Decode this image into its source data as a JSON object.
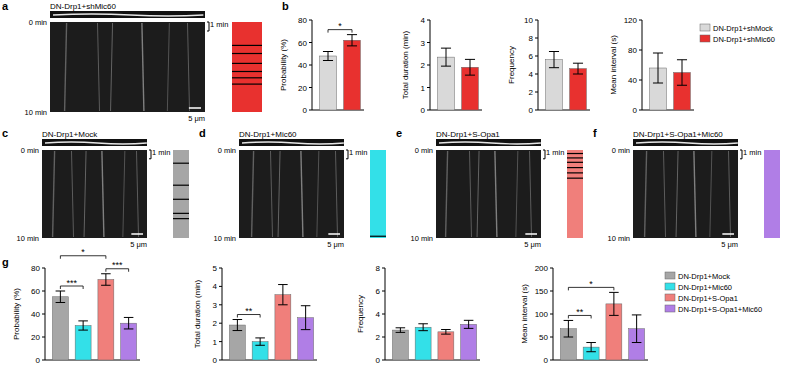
{
  "panel_labels": [
    "a",
    "b",
    "c",
    "d",
    "e",
    "f",
    "g"
  ],
  "kymographs": [
    {
      "title": "DN-Drp1+shMic60",
      "color": "#e8312f",
      "time_range": [
        0,
        10
      ],
      "time_ticks": [
        {
          "value": 0,
          "label": "0 min"
        },
        {
          "value": 10,
          "label": "10 min"
        }
      ],
      "time_scale": {
        "value": 1,
        "label": "1 min"
      },
      "space_range": [
        0,
        64
      ],
      "space_scale": {
        "value": 5,
        "label": "5 μm"
      },
      "events": [
        2.6,
        3.5,
        4.6,
        5.5,
        6.2,
        6.9
      ]
    },
    {
      "title": "DN-Drp1+Mock",
      "color": "#a6a6a6",
      "time_range": [
        0,
        10
      ],
      "time_ticks": [
        {
          "value": 0,
          "label": "0 min"
        },
        {
          "value": 10,
          "label": "10 min"
        }
      ],
      "time_scale": {
        "value": 1,
        "label": "1 min"
      },
      "space_range": [
        0,
        45
      ],
      "space_scale": {
        "value": 5,
        "label": "5 μm"
      },
      "events": [
        1.5,
        4.0,
        5.6,
        7.2,
        7.8
      ]
    },
    {
      "title": "DN-Drp1+Mic60",
      "color": "#33e0e8",
      "time_range": [
        0,
        10
      ],
      "time_ticks": [
        {
          "value": 0,
          "label": "0 min"
        },
        {
          "value": 10,
          "label": "10 min"
        }
      ],
      "time_scale": {
        "value": 1,
        "label": "1 min"
      },
      "space_range": [
        0,
        45
      ],
      "space_scale": {
        "value": 5,
        "label": "5 μm"
      },
      "events": [
        9.8
      ]
    },
    {
      "title": "DN-Drp1+S-Opa1",
      "color": "#f07f7b",
      "time_range": [
        0,
        10
      ],
      "time_ticks": [
        {
          "value": 0,
          "label": "0 min"
        },
        {
          "value": 10,
          "label": "10 min"
        }
      ],
      "time_scale": {
        "value": 1,
        "label": "1 min"
      },
      "space_range": [
        0,
        45
      ],
      "space_scale": {
        "value": 5,
        "label": "5 μm"
      },
      "events": [
        0.4,
        0.9,
        1.4,
        2.0,
        2.6,
        3.2
      ]
    },
    {
      "title": "DN-Drp1+S-Opa1+Mic60",
      "color": "#b07ee6",
      "time_range": [
        0,
        10
      ],
      "time_ticks": [
        {
          "value": 0,
          "label": "0 min"
        },
        {
          "value": 10,
          "label": "10 min"
        }
      ],
      "time_scale": {
        "value": 1,
        "label": "1 min"
      },
      "space_range": [
        0,
        45
      ],
      "space_scale": {
        "value": 5,
        "label": "5 μm"
      },
      "events": []
    }
  ],
  "chart_data": [
    {
      "type": "bar",
      "y_label": "Probability (%)",
      "categories": [
        null,
        null
      ],
      "values": [
        48,
        62
      ],
      "errors": [
        4,
        5
      ],
      "colors": [
        "#d9d9d9",
        "#e8312f"
      ],
      "ylim": [
        0,
        80
      ],
      "yticks": [
        0,
        20,
        40,
        60,
        80
      ],
      "tick_labels": "y",
      "annotations": [
        {
          "from": 0,
          "to": 1,
          "text": "*"
        }
      ]
    },
    {
      "type": "bar",
      "y_label": "Total duration (min)",
      "categories": [
        null,
        null
      ],
      "values": [
        2.35,
        1.9
      ],
      "errors": [
        0.4,
        0.35
      ],
      "colors": [
        "#d9d9d9",
        "#e8312f"
      ],
      "ylim": [
        0,
        4
      ],
      "yticks": [
        0,
        1,
        2,
        3,
        4
      ],
      "tick_labels": "y"
    },
    {
      "type": "bar",
      "y_label": "Frequency",
      "categories": [
        null,
        null
      ],
      "values": [
        5.6,
        4.6
      ],
      "errors": [
        0.9,
        0.6
      ],
      "colors": [
        "#d9d9d9",
        "#e8312f"
      ],
      "ylim": [
        0,
        10
      ],
      "yticks": [
        0,
        2,
        4,
        6,
        8,
        10
      ],
      "tick_labels": "y"
    },
    {
      "type": "bar",
      "y_label": "Mean interval (s)",
      "categories": [
        null,
        null
      ],
      "values": [
        56,
        50
      ],
      "errors": [
        20,
        17
      ],
      "colors": [
        "#d9d9d9",
        "#e8312f"
      ],
      "ylim": [
        0,
        120
      ],
      "yticks": [
        0,
        40,
        80,
        120
      ],
      "tick_labels": "y"
    },
    {
      "type": "bar",
      "y_label": "Probability (%)",
      "categories": [
        null,
        null,
        null,
        null
      ],
      "values": [
        55,
        30,
        70,
        32
      ],
      "errors": [
        5,
        4,
        5,
        5
      ],
      "colors": [
        "#a6a6a6",
        "#33e0e8",
        "#f07f7b",
        "#b07ee6"
      ],
      "ylim": [
        0,
        80
      ],
      "yticks": [
        0,
        20,
        40,
        60,
        80
      ],
      "tick_labels": "y",
      "annotations": [
        {
          "from": 0,
          "to": 1,
          "text": "***"
        },
        {
          "from": 0,
          "to": 2,
          "text": "*"
        },
        {
          "from": 2,
          "to": 3,
          "text": "***"
        }
      ]
    },
    {
      "type": "bar",
      "y_label": "Total duration (min)",
      "categories": [
        null,
        null,
        null,
        null
      ],
      "values": [
        1.9,
        1.0,
        3.55,
        2.3
      ],
      "errors": [
        0.3,
        0.2,
        0.55,
        0.65
      ],
      "colors": [
        "#a6a6a6",
        "#33e0e8",
        "#f07f7b",
        "#b07ee6"
      ],
      "ylim": [
        0,
        5
      ],
      "yticks": [
        0,
        1,
        2,
        3,
        4,
        5
      ],
      "tick_labels": "y",
      "annotations": [
        {
          "from": 0,
          "to": 1,
          "text": "**"
        }
      ]
    },
    {
      "type": "bar",
      "y_label": "Frequency",
      "categories": [
        null,
        null,
        null,
        null
      ],
      "values": [
        2.6,
        2.85,
        2.45,
        3.1
      ],
      "errors": [
        0.2,
        0.3,
        0.2,
        0.35
      ],
      "colors": [
        "#a6a6a6",
        "#33e0e8",
        "#f07f7b",
        "#b07ee6"
      ],
      "ylim": [
        0,
        8
      ],
      "yticks": [
        0,
        2,
        4,
        6,
        8
      ],
      "tick_labels": "y"
    },
    {
      "type": "bar",
      "y_label": "Mean interval (s)",
      "categories": [
        null,
        null,
        null,
        null
      ],
      "values": [
        68,
        28,
        122,
        68
      ],
      "errors": [
        18,
        10,
        25,
        30
      ],
      "colors": [
        "#a6a6a6",
        "#33e0e8",
        "#f07f7b",
        "#b07ee6"
      ],
      "ylim": [
        0,
        200
      ],
      "yticks": [
        0,
        50,
        100,
        150,
        200
      ],
      "tick_labels": "y",
      "annotations": [
        {
          "from": 0,
          "to": 1,
          "text": "**"
        },
        {
          "from": 0,
          "to": 2,
          "text": "*"
        }
      ]
    }
  ],
  "legends": [
    {
      "entries": [
        {
          "name": "DN-Drp1+shMock",
          "color": "#d9d9d9"
        },
        {
          "name": "DN-Drp1+shMic60",
          "color": "#e8312f"
        }
      ]
    },
    {
      "entries": [
        {
          "name": "DN-Drp1+Mock",
          "color": "#a6a6a6"
        },
        {
          "name": "DN-Drp1+Mic60",
          "color": "#33e0e8"
        },
        {
          "name": "DN-Drp1+S-Opa1",
          "color": "#f07f7b"
        },
        {
          "name": "DN-Drp1+S-Opa1+Mic60",
          "color": "#b07ee6"
        }
      ]
    }
  ]
}
